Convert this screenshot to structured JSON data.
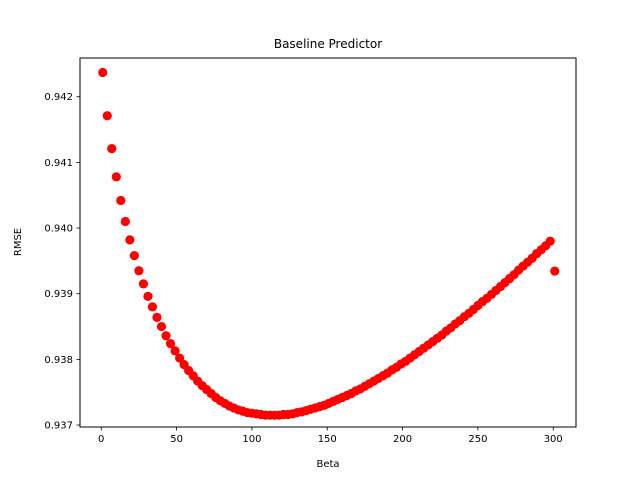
{
  "chart_data": {
    "type": "scatter",
    "title": "Baseline Predictor",
    "xlabel": "Beta",
    "ylabel": "RMSE",
    "xlim": [
      -14.1,
      315.1
    ],
    "ylim": [
      0.93697,
      0.94259
    ],
    "xticks": [
      0,
      50,
      100,
      150,
      200,
      250,
      300
    ],
    "xtick_labels": [
      "0",
      "50",
      "100",
      "150",
      "200",
      "250",
      "300"
    ],
    "yticks": [
      0.937,
      0.938,
      0.939,
      0.94,
      0.941,
      0.942
    ],
    "ytick_labels": [
      "0.937",
      "0.938",
      "0.939",
      "0.940",
      "0.941",
      "0.942"
    ],
    "grid": false,
    "series": [
      {
        "color": "#ff0000",
        "marker": "circle",
        "x": [
          1,
          4,
          7,
          10,
          13,
          16,
          19,
          22,
          25,
          28,
          31,
          34,
          37,
          40,
          43,
          46,
          49,
          52,
          55,
          58,
          61,
          64,
          67,
          70,
          73,
          76,
          79,
          82,
          85,
          88,
          91,
          94,
          97,
          100,
          103,
          106,
          109,
          112,
          115,
          118,
          121,
          124,
          127,
          130,
          133,
          136,
          139,
          142,
          145,
          148,
          151,
          154,
          157,
          160,
          163,
          166,
          169,
          172,
          175,
          178,
          181,
          184,
          187,
          190,
          193,
          196,
          199,
          202,
          205,
          208,
          211,
          214,
          217,
          220,
          223,
          226,
          229,
          232,
          235,
          238,
          241,
          244,
          247,
          250,
          253,
          256,
          259,
          262,
          265,
          268,
          271,
          274,
          277,
          280,
          283,
          286,
          289,
          292,
          295,
          298,
          301
        ],
        "y": [
          0.94237,
          0.94171,
          0.94121,
          0.94078,
          0.94042,
          0.9401,
          0.93982,
          0.93958,
          0.93935,
          0.93915,
          0.93896,
          0.9388,
          0.93864,
          0.9385,
          0.93836,
          0.93824,
          0.93813,
          0.93802,
          0.93792,
          0.93783,
          0.93775,
          0.93767,
          0.9376,
          0.93754,
          0.93748,
          0.93742,
          0.93737,
          0.93733,
          0.93729,
          0.93726,
          0.93723,
          0.93721,
          0.93719,
          0.93718,
          0.93717,
          0.93716,
          0.93715,
          0.93715,
          0.93715,
          0.93715,
          0.93716,
          0.93716,
          0.93717,
          0.93719,
          0.9372,
          0.93722,
          0.93724,
          0.93726,
          0.93728,
          0.9373,
          0.93733,
          0.93736,
          0.93739,
          0.93742,
          0.93745,
          0.93748,
          0.93752,
          0.93755,
          0.93759,
          0.93763,
          0.93767,
          0.93771,
          0.93775,
          0.93779,
          0.93784,
          0.93788,
          0.93793,
          0.93797,
          0.93802,
          0.93807,
          0.93812,
          0.93817,
          0.93822,
          0.93827,
          0.93832,
          0.93837,
          0.93843,
          0.93848,
          0.93854,
          0.93859,
          0.93865,
          0.9387,
          0.93876,
          0.93882,
          0.93888,
          0.93893,
          0.93899,
          0.93905,
          0.93911,
          0.93917,
          0.93923,
          0.93929,
          0.93936,
          0.93942,
          0.93948,
          0.93954,
          0.93961,
          0.93967,
          0.93973,
          0.9398,
          0.93935
        ]
      }
    ]
  }
}
